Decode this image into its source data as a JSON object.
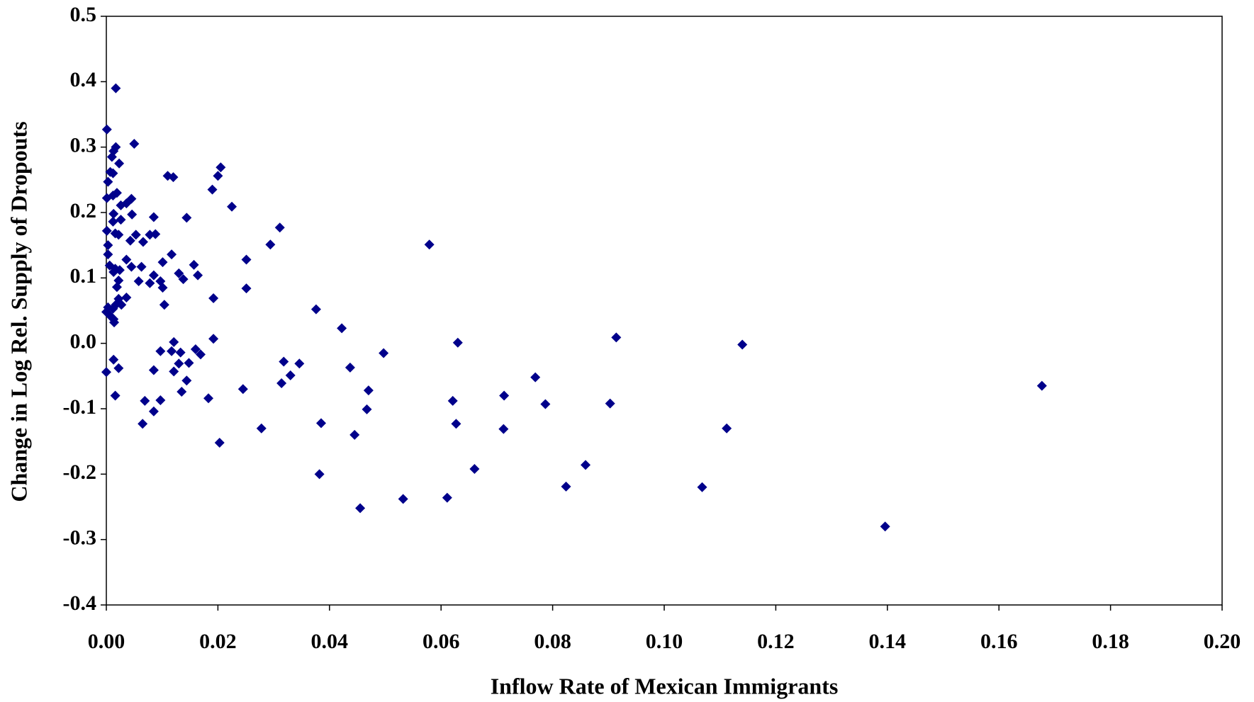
{
  "chart_data": {
    "type": "scatter",
    "x_label": "Inflow Rate of Mexican Immigrants",
    "y_label": "Change in Log Rel. Supply of Dropouts",
    "color": "#00008b",
    "marker": "diamond",
    "xlim": [
      0,
      0.2
    ],
    "ylim": [
      -0.4,
      0.5
    ],
    "xticks": [
      {
        "value": 0,
        "label": "0.00"
      },
      {
        "value": 0.02,
        "label": "0.02"
      },
      {
        "value": 0.04,
        "label": "0.04"
      },
      {
        "value": 0.06,
        "label": "0.06"
      },
      {
        "value": 0.08,
        "label": "0.08"
      },
      {
        "value": 0.1,
        "label": "0.10"
      },
      {
        "value": 0.12,
        "label": "0.12"
      },
      {
        "value": 0.14,
        "label": "0.14"
      },
      {
        "value": 0.16,
        "label": "0.16"
      },
      {
        "value": 0.18,
        "label": "0.18"
      },
      {
        "value": 0.2,
        "label": "0.20"
      }
    ],
    "yticks": [
      -0.4,
      -0.3,
      -0.2,
      -0.1,
      {
        "value": 0,
        "label": "0.0"
      },
      0.1,
      0.2,
      0.3,
      0.4,
      0.5
    ],
    "x": [
      0.0017,
      0.0001,
      0.005,
      0.0017,
      0.001,
      0.0013,
      0.0023,
      0.0205,
      0.011,
      0.012,
      0.02,
      0.0007,
      0.0012,
      0.0003,
      0.019,
      0.0001,
      0.0012,
      0.0019,
      0.0045,
      0.0036,
      0.0026,
      0.0225,
      0.0013,
      0.0046,
      0.0085,
      0.0144,
      0.0026,
      0.0012,
      0.0311,
      0.0001,
      0.0016,
      0.0022,
      0.0053,
      0.0078,
      0.0088,
      0.0066,
      0.0043,
      0.0003,
      0.0294,
      0.0579,
      0.0003,
      0.0117,
      0.0036,
      0.0251,
      0.0101,
      0.0157,
      0.0006,
      0.0045,
      0.0063,
      0.0016,
      0.0024,
      0.0013,
      0.013,
      0.0085,
      0.0164,
      0.0138,
      0.0022,
      0.0058,
      0.0078,
      0.0097,
      0.0019,
      0.0101,
      0.0251,
      0.0036,
      0.0022,
      0.0192,
      0.0027,
      0.0017,
      0.0104,
      0.0003,
      0.0012,
      0.0376,
      0.0,
      0.0007,
      0.0013,
      0.0014,
      0.0422,
      0.0914,
      0.0192,
      0.0121,
      0.063,
      0.114,
      0.0097,
      0.0117,
      0.0133,
      0.016,
      0.0169,
      0.0497,
      0.0013,
      0.0318,
      0.013,
      0.0148,
      0.0346,
      0.0022,
      0.0085,
      0.0437,
      0.0121,
      0.0,
      0.033,
      0.0769,
      0.0144,
      0.0314,
      0.1677,
      0.0135,
      0.0245,
      0.047,
      0.0016,
      0.0713,
      0.0183,
      0.0069,
      0.0097,
      0.0621,
      0.0787,
      0.0903,
      0.0467,
      0.0085,
      0.0065,
      0.0385,
      0.0627,
      0.0278,
      0.0712,
      0.1112,
      0.0445,
      0.0203,
      0.0859,
      0.066,
      0.0382,
      0.0824,
      0.1068,
      0.0611,
      0.0532,
      0.0455,
      0.1396
    ],
    "values": [
      0.39,
      0.327,
      0.305,
      0.3,
      0.285,
      0.294,
      0.275,
      0.269,
      0.256,
      0.254,
      0.256,
      0.262,
      0.26,
      0.247,
      0.235,
      0.222,
      0.226,
      0.23,
      0.221,
      0.214,
      0.211,
      0.209,
      0.198,
      0.197,
      0.193,
      0.192,
      0.189,
      0.186,
      0.177,
      0.172,
      0.168,
      0.166,
      0.166,
      0.166,
      0.167,
      0.155,
      0.157,
      0.15,
      0.151,
      0.151,
      0.136,
      0.136,
      0.128,
      0.128,
      0.124,
      0.12,
      0.119,
      0.117,
      0.117,
      0.114,
      0.112,
      0.109,
      0.107,
      0.104,
      0.104,
      0.098,
      0.096,
      0.095,
      0.092,
      0.095,
      0.086,
      0.085,
      0.084,
      0.07,
      0.068,
      0.069,
      0.059,
      0.059,
      0.059,
      0.055,
      0.053,
      0.052,
      0.048,
      0.042,
      0.037,
      0.032,
      0.023,
      0.009,
      0.007,
      0.002,
      0.001,
      -0.002,
      -0.012,
      -0.012,
      -0.014,
      -0.009,
      -0.017,
      -0.015,
      -0.025,
      -0.028,
      -0.031,
      -0.03,
      -0.031,
      -0.038,
      -0.041,
      -0.037,
      -0.043,
      -0.044,
      -0.049,
      -0.052,
      -0.057,
      -0.061,
      -0.065,
      -0.074,
      -0.07,
      -0.072,
      -0.08,
      -0.08,
      -0.084,
      -0.088,
      -0.087,
      -0.088,
      -0.093,
      -0.092,
      -0.101,
      -0.104,
      -0.123,
      -0.122,
      -0.123,
      -0.13,
      -0.131,
      -0.13,
      -0.14,
      -0.152,
      -0.186,
      -0.192,
      -0.2,
      -0.219,
      -0.22,
      -0.236,
      -0.238,
      -0.252,
      -0.28
    ]
  }
}
